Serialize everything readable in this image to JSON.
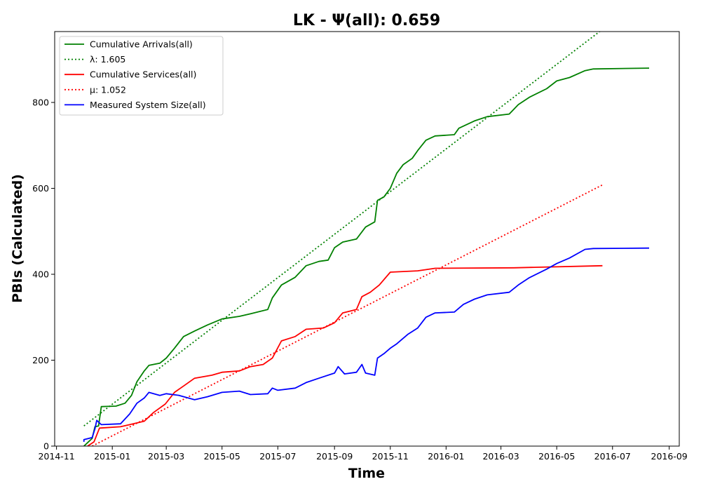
{
  "chart_data": {
    "type": "line",
    "title": "LK -  Ψ(all): 0.659",
    "xlabel": "Time",
    "ylabel": "PBIs (Calculated)",
    "x_type": "date",
    "xlim": [
      "2014-10-30",
      "2016-09-12"
    ],
    "ylim": [
      0,
      965
    ],
    "x_ticks": [
      "2014-11",
      "2015-01",
      "2015-03",
      "2015-05",
      "2015-07",
      "2015-09",
      "2015-11",
      "2016-01",
      "2016-03",
      "2016-05",
      "2016-07",
      "2016-09"
    ],
    "y_ticks": [
      0,
      200,
      400,
      600,
      800
    ],
    "grid": false,
    "legend_position": "top-left",
    "series": [
      {
        "name": "Cumulative Arrivals(all)",
        "color": "#008000",
        "style": "solid",
        "points": [
          [
            "2014-12-01",
            0
          ],
          [
            "2014-12-10",
            18
          ],
          [
            "2014-12-13",
            45
          ],
          [
            "2014-12-17",
            47
          ],
          [
            "2014-12-20",
            92
          ],
          [
            "2015-01-05",
            93
          ],
          [
            "2015-01-15",
            100
          ],
          [
            "2015-01-22",
            118
          ],
          [
            "2015-01-28",
            150
          ],
          [
            "2015-02-05",
            175
          ],
          [
            "2015-02-10",
            188
          ],
          [
            "2015-02-22",
            193
          ],
          [
            "2015-03-01",
            205
          ],
          [
            "2015-03-10",
            228
          ],
          [
            "2015-03-20",
            255
          ],
          [
            "2015-04-01",
            268
          ],
          [
            "2015-04-15",
            282
          ],
          [
            "2015-05-01",
            296
          ],
          [
            "2015-05-20",
            302
          ],
          [
            "2015-06-01",
            308
          ],
          [
            "2015-06-20",
            318
          ],
          [
            "2015-06-25",
            345
          ],
          [
            "2015-07-05",
            375
          ],
          [
            "2015-07-20",
            393
          ],
          [
            "2015-08-01",
            420
          ],
          [
            "2015-08-15",
            430
          ],
          [
            "2015-08-25",
            433
          ],
          [
            "2015-09-01",
            462
          ],
          [
            "2015-09-10",
            475
          ],
          [
            "2015-09-25",
            482
          ],
          [
            "2015-10-05",
            510
          ],
          [
            "2015-10-15",
            522
          ],
          [
            "2015-10-18",
            572
          ],
          [
            "2015-10-25",
            580
          ],
          [
            "2015-11-01",
            600
          ],
          [
            "2015-11-08",
            635
          ],
          [
            "2015-11-15",
            655
          ],
          [
            "2015-11-25",
            670
          ],
          [
            "2015-12-01",
            688
          ],
          [
            "2015-12-10",
            712
          ],
          [
            "2015-12-20",
            722
          ],
          [
            "2016-01-10",
            725
          ],
          [
            "2016-01-15",
            740
          ],
          [
            "2016-02-01",
            757
          ],
          [
            "2016-02-15",
            767
          ],
          [
            "2016-03-10",
            773
          ],
          [
            "2016-03-20",
            795
          ],
          [
            "2016-04-01",
            812
          ],
          [
            "2016-04-20",
            832
          ],
          [
            "2016-05-01",
            850
          ],
          [
            "2016-05-15",
            858
          ],
          [
            "2016-06-01",
            874
          ],
          [
            "2016-06-10",
            878
          ],
          [
            "2016-08-10",
            880
          ]
        ]
      },
      {
        "name": "λ: 1.605",
        "color": "#008000",
        "style": "dotted",
        "points": [
          [
            "2014-12-01",
            47
          ],
          [
            "2016-06-20",
            970
          ]
        ]
      },
      {
        "name": "Cumulative Services(all)",
        "color": "#ff0000",
        "style": "solid",
        "points": [
          [
            "2014-12-05",
            0
          ],
          [
            "2014-12-12",
            10
          ],
          [
            "2014-12-18",
            42
          ],
          [
            "2015-01-10",
            45
          ],
          [
            "2015-01-20",
            50
          ],
          [
            "2015-02-05",
            58
          ],
          [
            "2015-02-15",
            78
          ],
          [
            "2015-02-28",
            98
          ],
          [
            "2015-03-10",
            125
          ],
          [
            "2015-03-20",
            140
          ],
          [
            "2015-04-01",
            158
          ],
          [
            "2015-04-20",
            165
          ],
          [
            "2015-05-01",
            172
          ],
          [
            "2015-05-20",
            175
          ],
          [
            "2015-06-01",
            185
          ],
          [
            "2015-06-15",
            190
          ],
          [
            "2015-06-25",
            205
          ],
          [
            "2015-07-05",
            245
          ],
          [
            "2015-07-20",
            255
          ],
          [
            "2015-08-01",
            272
          ],
          [
            "2015-08-20",
            275
          ],
          [
            "2015-09-01",
            287
          ],
          [
            "2015-09-10",
            310
          ],
          [
            "2015-09-25",
            318
          ],
          [
            "2015-10-01",
            348
          ],
          [
            "2015-10-10",
            358
          ],
          [
            "2015-10-20",
            375
          ],
          [
            "2015-11-01",
            405
          ],
          [
            "2015-12-01",
            408
          ],
          [
            "2015-12-20",
            414
          ],
          [
            "2016-03-15",
            415
          ],
          [
            "2016-06-20",
            420
          ]
        ]
      },
      {
        "name": "μ: 1.052",
        "color": "#ff0000",
        "style": "dotted",
        "points": [
          [
            "2014-12-10",
            0
          ],
          [
            "2016-06-20",
            608
          ]
        ]
      },
      {
        "name": "Measured System Size(all)",
        "color": "#0000ff",
        "style": "solid",
        "points": [
          [
            "2014-12-01",
            10
          ],
          [
            "2014-12-01",
            15
          ],
          [
            "2014-12-10",
            20
          ],
          [
            "2014-12-13",
            40
          ],
          [
            "2014-12-15",
            60
          ],
          [
            "2014-12-20",
            50
          ],
          [
            "2015-01-10",
            52
          ],
          [
            "2015-01-20",
            75
          ],
          [
            "2015-01-28",
            100
          ],
          [
            "2015-02-05",
            112
          ],
          [
            "2015-02-10",
            125
          ],
          [
            "2015-02-22",
            118
          ],
          [
            "2015-03-01",
            122
          ],
          [
            "2015-03-15",
            118
          ],
          [
            "2015-04-01",
            108
          ],
          [
            "2015-04-15",
            115
          ],
          [
            "2015-05-01",
            125
          ],
          [
            "2015-05-20",
            128
          ],
          [
            "2015-06-01",
            120
          ],
          [
            "2015-06-20",
            122
          ],
          [
            "2015-06-25",
            135
          ],
          [
            "2015-07-01",
            130
          ],
          [
            "2015-07-20",
            135
          ],
          [
            "2015-08-01",
            148
          ],
          [
            "2015-08-15",
            158
          ],
          [
            "2015-09-01",
            170
          ],
          [
            "2015-09-05",
            185
          ],
          [
            "2015-09-12",
            168
          ],
          [
            "2015-09-25",
            172
          ],
          [
            "2015-10-01",
            190
          ],
          [
            "2015-10-05",
            170
          ],
          [
            "2015-10-15",
            165
          ],
          [
            "2015-10-18",
            205
          ],
          [
            "2015-10-25",
            215
          ],
          [
            "2015-11-01",
            228
          ],
          [
            "2015-11-08",
            238
          ],
          [
            "2015-11-20",
            260
          ],
          [
            "2015-12-01",
            275
          ],
          [
            "2015-12-10",
            300
          ],
          [
            "2015-12-20",
            310
          ],
          [
            "2016-01-10",
            312
          ],
          [
            "2016-01-20",
            330
          ],
          [
            "2016-02-01",
            342
          ],
          [
            "2016-02-15",
            352
          ],
          [
            "2016-03-10",
            358
          ],
          [
            "2016-03-20",
            375
          ],
          [
            "2016-04-01",
            392
          ],
          [
            "2016-04-20",
            412
          ],
          [
            "2016-05-01",
            425
          ],
          [
            "2016-05-15",
            438
          ],
          [
            "2016-06-01",
            458
          ],
          [
            "2016-06-10",
            460
          ],
          [
            "2016-08-10",
            461
          ]
        ]
      }
    ]
  }
}
